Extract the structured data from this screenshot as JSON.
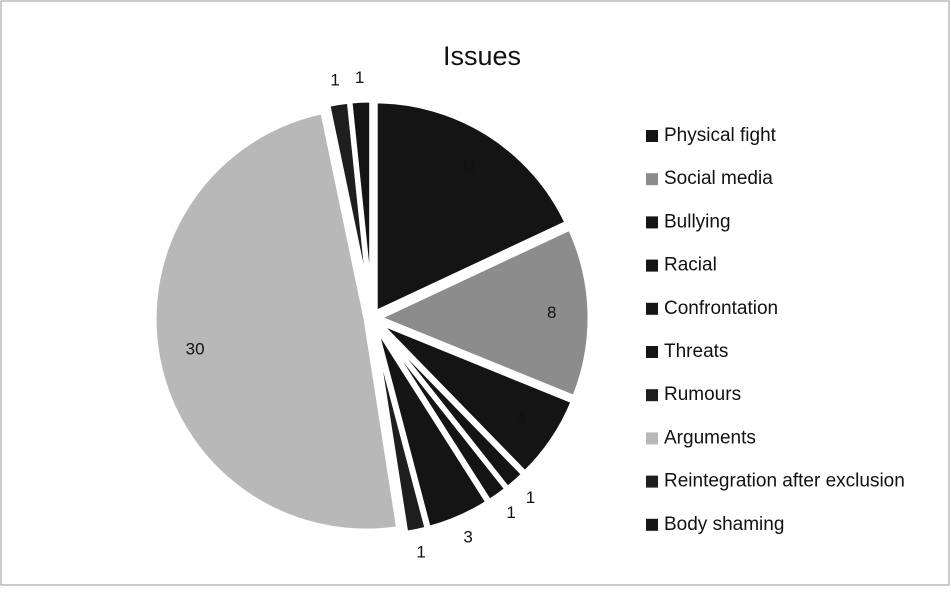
{
  "chart_data": {
    "type": "pie",
    "title": "Issues",
    "categories": [
      "Physical fight",
      "Social media",
      "Bullying",
      "Racial",
      "Confrontation",
      "Threats",
      "Rumours",
      "Arguments",
      "Reintegration after exclusion",
      "Body shaming"
    ],
    "values": [
      11,
      8,
      4,
      1,
      1,
      3,
      1,
      30,
      1,
      1
    ],
    "colors": [
      "#141414",
      "#8c8c8c",
      "#141414",
      "#141414",
      "#141414",
      "#141414",
      "#1e1e1e",
      "#b8b8b8",
      "#1e1e1e",
      "#141414"
    ],
    "legend": "right"
  }
}
